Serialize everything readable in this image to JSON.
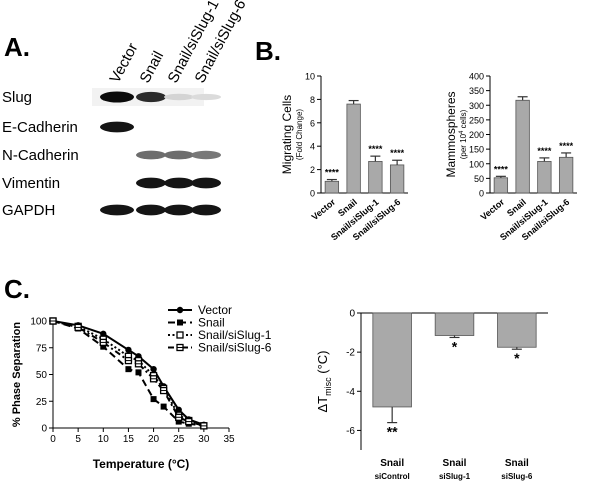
{
  "panels": {
    "a": "A.",
    "b": "B.",
    "c": "C."
  },
  "western_blot": {
    "lane_labels": [
      "Vector",
      "Snail",
      "Snail/siSlug-1",
      "Snail/siSlug-6"
    ],
    "rows": [
      {
        "label": "Slug",
        "intensity": [
          1.0,
          0.85,
          0.08,
          0.05
        ]
      },
      {
        "label": "E-Cadherin",
        "intensity": [
          0.95,
          0.0,
          0.0,
          0.0
        ]
      },
      {
        "label": "N-Cadherin",
        "intensity": [
          0.0,
          0.55,
          0.55,
          0.5
        ]
      },
      {
        "label": "Vimentin",
        "intensity": [
          0.0,
          0.95,
          0.95,
          0.95
        ]
      },
      {
        "label": "GAPDH",
        "intensity": [
          0.95,
          0.95,
          0.95,
          0.95
        ]
      }
    ]
  },
  "colors": {
    "bar": "#a9a9a9",
    "ink": "#000000"
  },
  "chart_data": [
    {
      "type": "bar",
      "id": "migrating",
      "ylabel": "Migrating Cells",
      "ylabel_sub": "(Fold Change)",
      "categories": [
        "Vector",
        "Snail",
        "Snail/siSlug-1",
        "Snail/siSlug-6"
      ],
      "values": [
        1.0,
        7.6,
        2.7,
        2.4
      ],
      "errors": [
        0.15,
        0.3,
        0.45,
        0.4
      ],
      "annotations": [
        "****",
        "",
        "****",
        "****"
      ],
      "ylim": [
        0,
        10
      ],
      "yticks": [
        "0",
        "2",
        "4",
        "6",
        "8",
        "10"
      ]
    },
    {
      "type": "bar",
      "id": "mammospheres",
      "ylabel": "Mammospheres",
      "ylabel_sub": "(per 10",
      "ylabel_sup": "4",
      "ylabel_end": " cells)",
      "categories": [
        "Vector",
        "Snail",
        "Snail/siSlug-1",
        "Snail/siSlug-6"
      ],
      "values": [
        52,
        317,
        108,
        122
      ],
      "errors": [
        5,
        12,
        12,
        15
      ],
      "annotations": [
        "****",
        "",
        "****",
        "****"
      ],
      "ylim": [
        0,
        400
      ],
      "yticks": [
        "0",
        "50",
        "100",
        "150",
        "200",
        "250",
        "300",
        "350",
        "400"
      ]
    },
    {
      "type": "line",
      "id": "phase-separation",
      "ylabel": "% Phase Separation",
      "xlabel": "Temperature (°C)",
      "xlim": [
        0,
        35
      ],
      "ylim": [
        0,
        100
      ],
      "xticks": [
        "0",
        "5",
        "10",
        "15",
        "20",
        "25",
        "30",
        "35"
      ],
      "yticks": [
        "0",
        "25",
        "50",
        "75",
        "100"
      ],
      "x": [
        0,
        5,
        10,
        15,
        17,
        20,
        22,
        25,
        27,
        30
      ],
      "series": [
        {
          "name": "Vector",
          "marker": "circle",
          "line": "solid",
          "values": [
            100,
            96,
            88,
            73,
            67,
            55,
            39,
            17,
            8,
            3
          ]
        },
        {
          "name": "Snail",
          "marker": "square-filled",
          "line": "dashed",
          "values": [
            100,
            93,
            76,
            55,
            52,
            27,
            20,
            6,
            4,
            2
          ]
        },
        {
          "name": "Snail/siSlug-1",
          "marker": "square-open",
          "line": "dotted",
          "values": [
            100,
            95,
            83,
            67,
            63,
            49,
            37,
            12,
            7,
            2
          ]
        },
        {
          "name": "Snail/siSlug-6",
          "marker": "square-crossed",
          "line": "dash-dot",
          "values": [
            100,
            94,
            80,
            63,
            60,
            46,
            35,
            10,
            6,
            2
          ]
        }
      ]
    },
    {
      "type": "bar",
      "id": "delta-t",
      "ylabel": "ΔT",
      "ylabel_sub": "misc",
      "ylabel_unit": " (°C)",
      "categories": [
        {
          "line1": "Snail",
          "line2": "siControl"
        },
        {
          "line1": "Snail",
          "line2": "siSlug-1"
        },
        {
          "line1": "Snail",
          "line2": "siSlug-6"
        }
      ],
      "values": [
        -4.8,
        -1.15,
        -1.75
      ],
      "errors": [
        0.8,
        0.1,
        0.1
      ],
      "annotations": [
        "**",
        "*",
        "*"
      ],
      "ylim": [
        -7,
        0
      ],
      "yticks": [
        "0",
        "-2",
        "-4",
        "-6"
      ]
    }
  ]
}
